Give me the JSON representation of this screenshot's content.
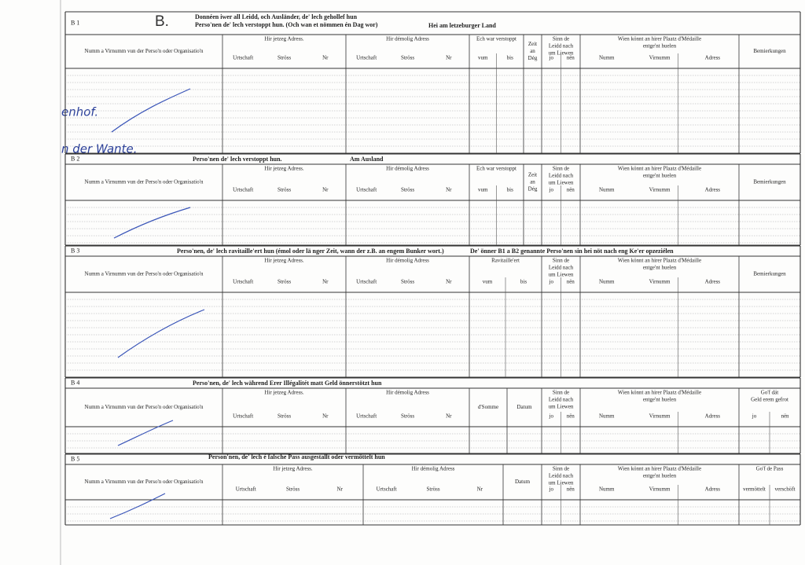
{
  "header": {
    "mark": "B."
  },
  "handwriting": [
    "enhof.",
    "n der Wante."
  ],
  "sections": [
    {
      "code": "B 1",
      "title": [
        "Donnéen iwer all Leidd, och Ausländer, de' lech gehollef hun",
        "Perso'nen de' lech verstoppt hun. (Och wan et nömmen én Dag wor)",
        "Hei am letzeburger Land"
      ],
      "columns": [
        {
          "label": [
            "Numm a Virnumm vun der Perso'n oder Organisatio'n"
          ],
          "sub": []
        },
        {
          "label": [
            "Hir jetzeg Adress."
          ],
          "sub": [
            "Urtschaft",
            "Ströss",
            "Nr"
          ]
        },
        {
          "label": [
            "Hir démolig Adress"
          ],
          "sub": [
            "Urtschaft",
            "Ströss",
            "Nr"
          ]
        },
        {
          "label": [
            "Ech war verstoppt"
          ],
          "sub": [
            "vum",
            "bis"
          ]
        },
        {
          "label": [
            "Zeit",
            "an",
            "Dég"
          ],
          "sub": []
        },
        {
          "label": [
            "Sinn de",
            "Leidd nach",
            "um Liewen"
          ],
          "sub": [
            "jo",
            "nën"
          ]
        },
        {
          "label": [
            "Wien könnt an hirer Plaatz d'Médaille",
            "entge'nt huelen"
          ],
          "sub": [
            "Numm",
            "Virnumm",
            "Adress"
          ]
        },
        {
          "label": [
            "Bemierkungen"
          ],
          "sub": []
        }
      ]
    },
    {
      "code": "B 2",
      "title": [
        "Perso'nen de' lech verstoppt hun.",
        "Am Ausland"
      ],
      "columns": [
        {
          "label": [
            "Numm a Virnumm vun der Perso'n oder Organisatio'n"
          ],
          "sub": []
        },
        {
          "label": [
            "Hir jetzeg Adress."
          ],
          "sub": [
            "Urtschaft",
            "Ströss",
            "Nr"
          ]
        },
        {
          "label": [
            "Hir démolig Adress"
          ],
          "sub": [
            "Urtschaft",
            "Ströss",
            "Nr"
          ]
        },
        {
          "label": [
            "Ech war verstoppt"
          ],
          "sub": [
            "vum",
            "bis"
          ]
        },
        {
          "label": [
            "Zeit",
            "an",
            "Dég"
          ],
          "sub": []
        },
        {
          "label": [
            "Sinn de",
            "Leidd nach",
            "um Liewen"
          ],
          "sub": [
            "jo",
            "nën"
          ]
        },
        {
          "label": [
            "Wien könnt an hirer Plaatz d'Médaille",
            "entge'nt huelen"
          ],
          "sub": [
            "Numm",
            "Virnumm",
            "Adress"
          ]
        },
        {
          "label": [
            "Bemierkungen"
          ],
          "sub": []
        }
      ]
    },
    {
      "code": "B 3",
      "title": [
        "Perso'nen, de' lech ravitaille'ert hun (émol oder lä nger Zeit, wann der z.B. an engem Bunker wort.)",
        "De' önner B1 a B2 genannte Perso'nen sin hei nöt nach eng Ke'er opzeziélen"
      ],
      "columns": [
        {
          "label": [
            "Numm a Virnumm vun der Perso'n oder Organisatio'n"
          ],
          "sub": []
        },
        {
          "label": [
            "Hir jetzeg Adress."
          ],
          "sub": [
            "Urtschaft",
            "Ströss",
            "Nr"
          ]
        },
        {
          "label": [
            "Hir démolig Adress"
          ],
          "sub": [
            "Urtschaft",
            "Ströss",
            "Nr"
          ]
        },
        {
          "label": [
            "Ravitaille'ert"
          ],
          "sub": [
            "vum",
            "bis"
          ]
        },
        {
          "label": [
            "Sinn de",
            "Leidd nach",
            "um Liewen"
          ],
          "sub": [
            "jo",
            "nën"
          ]
        },
        {
          "label": [
            "Wien könnt an hirer Plaatz d'Médaille",
            "entge'nt huelen"
          ],
          "sub": [
            "Numm",
            "Virnumm",
            "Adress"
          ]
        },
        {
          "label": [
            "Bemierkungen"
          ],
          "sub": []
        }
      ]
    },
    {
      "code": "B 4",
      "title": [
        "Perso'nen, de' lech während Erer Illégalitét matt Geld önnerstötzt hun"
      ],
      "columns": [
        {
          "label": [
            "Numm a Virnumm vun der Perso'n oder Organisatio'n"
          ],
          "sub": []
        },
        {
          "label": [
            "Hir jetzeg Adress."
          ],
          "sub": [
            "Urtschaft",
            "Ströss",
            "Nr"
          ]
        },
        {
          "label": [
            "Hir démolig Adress"
          ],
          "sub": [
            "Urtschaft",
            "Ströss",
            "Nr"
          ]
        },
        {
          "label": [
            "d'Somme"
          ],
          "sub": []
        },
        {
          "label": [
            "Datum"
          ],
          "sub": []
        },
        {
          "label": [
            "Sinn de",
            "Leidd nach",
            "um Liewen"
          ],
          "sub": [
            "jo",
            "nën"
          ]
        },
        {
          "label": [
            "Wien könnt an hirer Plaatz d'Médaille",
            "entge'nt huelen"
          ],
          "sub": [
            "Numm",
            "Virnumm",
            "Adress"
          ]
        },
        {
          "label": [
            "Go'f dät",
            "Geld erem gefrot"
          ],
          "sub": [
            "jo",
            "nën"
          ]
        }
      ]
    },
    {
      "code": "B 5",
      "title": [
        "Person'nen, de' lech é falsche Pass ausgestallt oder vermöttelt hun"
      ],
      "columns": [
        {
          "label": [
            "Numm a Virnumm vun der Perso'n oder Organisatio'n"
          ],
          "sub": []
        },
        {
          "label": [
            "Hir jetzeg Adress."
          ],
          "sub": [
            "Urtschaft",
            "Ströss",
            "Nr"
          ]
        },
        {
          "label": [
            "Hir démolig Adress"
          ],
          "sub": [
            "Urtschaft",
            "Ströss",
            "Nr"
          ]
        },
        {
          "label": [
            "Datum"
          ],
          "sub": []
        },
        {
          "label": [
            "Sinn de",
            "Leidd nach",
            "um Liewen"
          ],
          "sub": [
            "jo",
            "nën"
          ]
        },
        {
          "label": [
            "Wien könnt an hirer Plaatz d'Médaille",
            "entge'nt huelen"
          ],
          "sub": [
            "Numm",
            "Virnumm",
            "Adress"
          ]
        },
        {
          "label": [
            "Go'f de Pass"
          ],
          "sub": [
            "vermöttelt",
            "verschöft"
          ]
        }
      ]
    }
  ]
}
